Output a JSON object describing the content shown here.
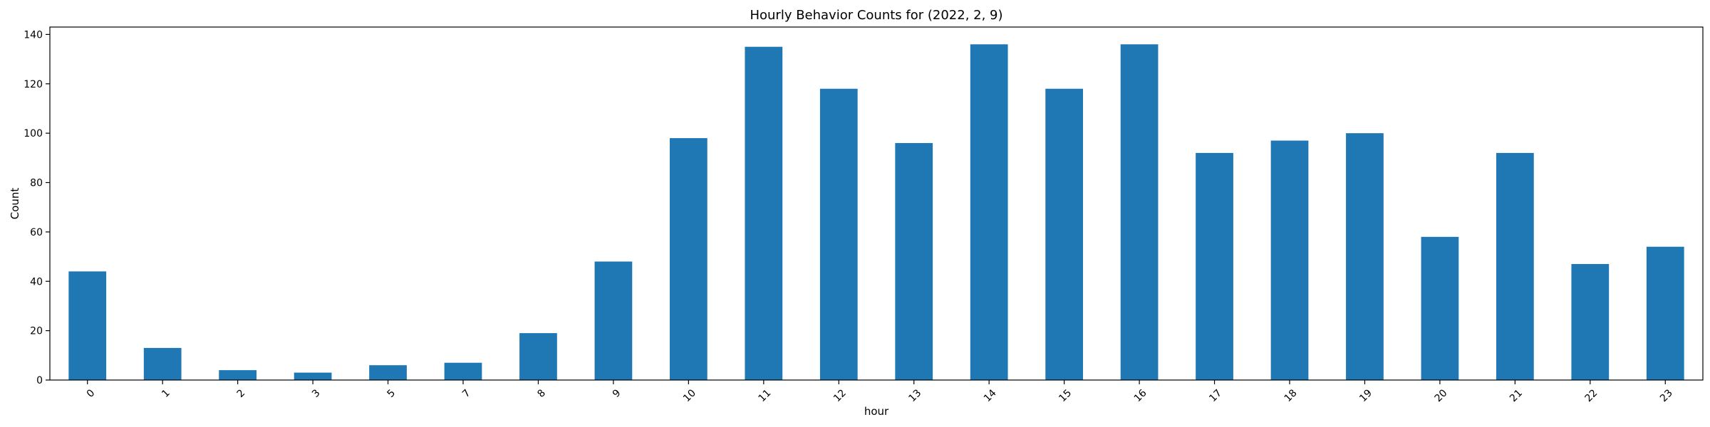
{
  "chart_data": {
    "type": "bar",
    "title": "Hourly Behavior Counts for (2022, 2, 9)",
    "xlabel": "hour",
    "ylabel": "Count",
    "categories": [
      "0",
      "1",
      "2",
      "3",
      "5",
      "7",
      "8",
      "9",
      "10",
      "11",
      "12",
      "13",
      "14",
      "15",
      "16",
      "17",
      "18",
      "19",
      "20",
      "21",
      "22",
      "23"
    ],
    "values": [
      44,
      13,
      4,
      3,
      6,
      7,
      19,
      48,
      98,
      135,
      118,
      96,
      136,
      118,
      136,
      92,
      97,
      100,
      58,
      92,
      47,
      54
    ],
    "ylim": [
      0,
      143
    ],
    "yticks": [
      0,
      20,
      40,
      60,
      80,
      100,
      120,
      140
    ],
    "grid": false,
    "legend": "none",
    "bar_color": "#1f77b4",
    "x_tick_rotation": "45 degrees"
  }
}
